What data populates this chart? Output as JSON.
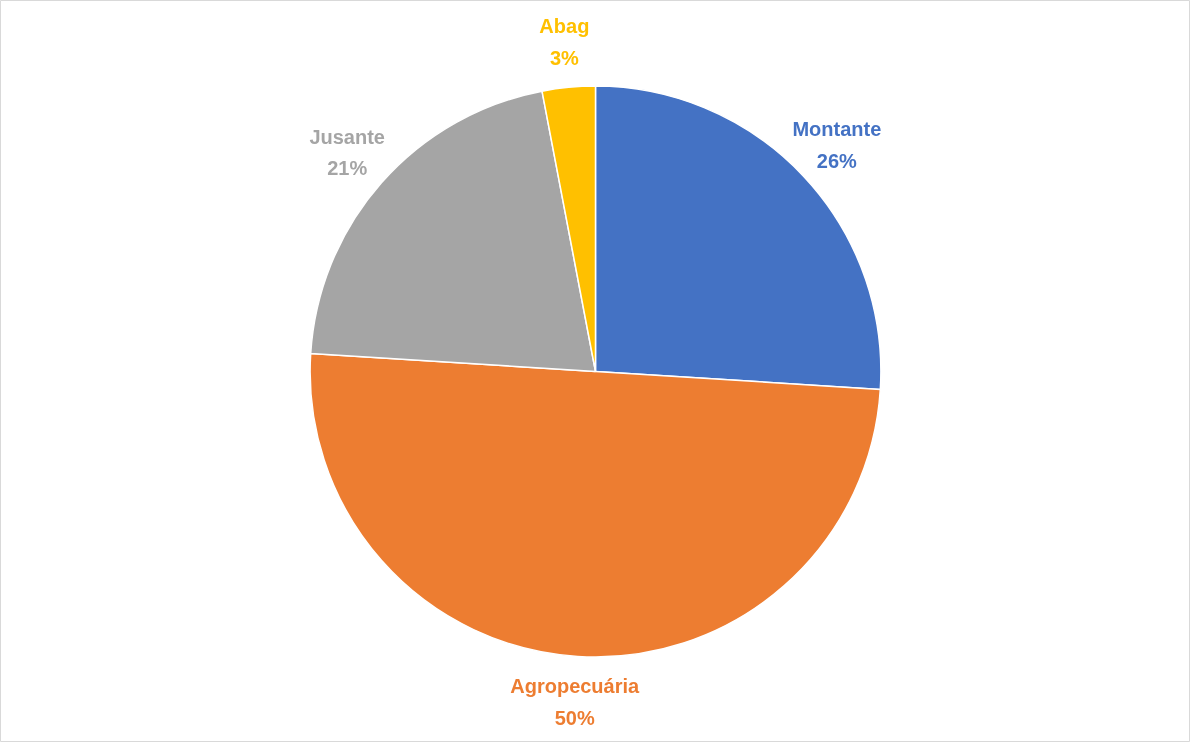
{
  "chart_data": {
    "type": "pie",
    "categories": [
      "Montante",
      "Agropecuária",
      "Jusante",
      "Abag"
    ],
    "values": [
      26,
      50,
      21,
      3
    ],
    "colors": [
      "#4472c4",
      "#ed7d31",
      "#a5a5a5",
      "#ffc000"
    ],
    "value_labels": [
      "26%",
      "50%",
      "21%",
      "3%"
    ]
  }
}
